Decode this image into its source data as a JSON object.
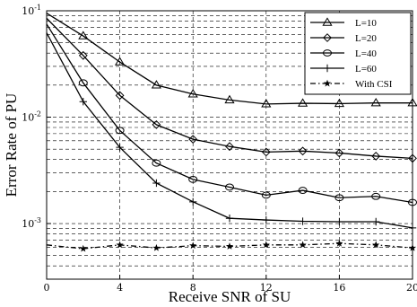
{
  "chart_data": {
    "type": "line",
    "xlabel": "Receive SNR of SU",
    "ylabel": "Error Rate of PU",
    "xlim": [
      0,
      20
    ],
    "ylim": [
      0.0003,
      0.1
    ],
    "yscale": "log",
    "grid": true,
    "legend_position": "top-right",
    "x_ticks": [
      "0",
      "4",
      "8",
      "12",
      "16",
      "20"
    ],
    "x_tick_values": [
      0,
      4,
      8,
      12,
      16,
      20
    ],
    "y_ticks": [
      {
        "value": 0.1,
        "base": "10",
        "exp": "-1"
      },
      {
        "value": 0.01,
        "base": "10",
        "exp": "-2"
      },
      {
        "value": 0.001,
        "base": "10",
        "exp": "-3"
      }
    ],
    "x": [
      0,
      2,
      4,
      6,
      8,
      10,
      12,
      14,
      16,
      18,
      20
    ],
    "series": [
      {
        "name": "L=10",
        "marker": "triangle",
        "dash": "solid",
        "values": [
          0.095,
          0.058,
          0.033,
          0.02,
          0.0165,
          0.0145,
          0.0133,
          0.0135,
          0.0134,
          0.0136,
          0.0136
        ]
      },
      {
        "name": "L=20",
        "marker": "diamond",
        "dash": "solid",
        "values": [
          0.085,
          0.038,
          0.016,
          0.0085,
          0.0062,
          0.0053,
          0.0047,
          0.0048,
          0.0046,
          0.0043,
          0.0041
        ]
      },
      {
        "name": "L=40",
        "marker": "circle",
        "dash": "solid",
        "values": [
          0.075,
          0.021,
          0.0075,
          0.0037,
          0.0026,
          0.0022,
          0.00185,
          0.00205,
          0.00175,
          0.0018,
          0.00158
        ]
      },
      {
        "name": "L=60",
        "marker": "plus",
        "dash": "solid",
        "values": [
          0.062,
          0.014,
          0.0052,
          0.0024,
          0.0016,
          0.00112,
          0.00108,
          0.00105,
          0.00104,
          0.00104,
          0.00091
        ]
      },
      {
        "name": "With CSI",
        "marker": "star",
        "dash": "dashdot",
        "values": [
          0.00063,
          0.00058,
          0.00063,
          0.00059,
          0.00062,
          0.00061,
          0.00063,
          0.00063,
          0.00065,
          0.00063,
          0.00059
        ]
      }
    ]
  }
}
